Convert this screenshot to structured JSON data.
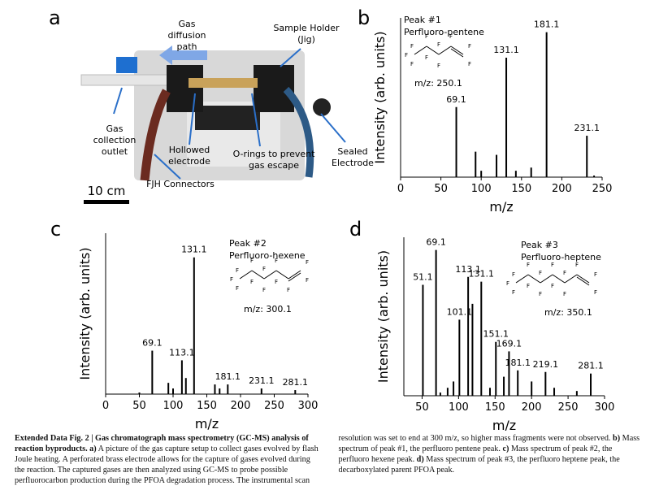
{
  "panel_a": {
    "letter": "a",
    "labels": [
      [
        "Gas",
        "diffusion",
        "path"
      ],
      [
        "Sample Holder",
        "(Jig)"
      ],
      [
        "Gas",
        "collection",
        "outlet"
      ],
      [
        "Hollowed",
        "electrode"
      ],
      [
        "O-rings to prevent",
        "gas escape"
      ],
      [
        "Sealed",
        "Electrode"
      ],
      [
        "FJH Connectors"
      ]
    ],
    "scale_bar": "10 cm"
  },
  "chart_data": [
    {
      "type": "bar",
      "panel": "b",
      "title": "Peak #1",
      "subtitle": "Perfluoro-pentene",
      "annotation": "m/z: 250.1",
      "structure_label": "F",
      "carbons": 5,
      "xlabel": "m/z",
      "ylabel": "Intensity (arb. units)",
      "xlim": [
        0,
        250
      ],
      "xticks": [
        0,
        50,
        100,
        150,
        200,
        250
      ],
      "ylim": [
        0,
        100
      ],
      "color": "#000000",
      "series": [
        {
          "labeled": true,
          "x": [
            69.1,
            131.1,
            181.1,
            231.1
          ],
          "values": [
            44,
            75,
            91,
            26
          ]
        },
        {
          "labeled": false,
          "x": [
            93,
            100,
            119,
            143,
            162,
            240
          ],
          "values": [
            16,
            4,
            14,
            4,
            6,
            1
          ]
        }
      ]
    },
    {
      "type": "bar",
      "panel": "c",
      "title": "Peak #2",
      "subtitle": "Perfluoro-hexene",
      "annotation": "m/z: 300.1",
      "structure_label": "F",
      "carbons": 6,
      "xlabel": "m/z",
      "ylabel": "Intensity (arb. units)",
      "xlim": [
        0,
        300
      ],
      "xticks": [
        0,
        50,
        100,
        150,
        200,
        250,
        300
      ],
      "ylim": [
        0,
        100
      ],
      "color": "#000000",
      "series": [
        {
          "labeled": true,
          "x": [
            69.1,
            113.1,
            131.1,
            181.1,
            231.1,
            281.1
          ],
          "values": [
            27,
            21,
            85,
            6,
            3.5,
            2.5
          ]
        },
        {
          "labeled": false,
          "x": [
            50,
            93,
            100,
            119,
            162,
            169
          ],
          "values": [
            1,
            7,
            3.5,
            10,
            6,
            3.5
          ]
        }
      ]
    },
    {
      "type": "bar",
      "panel": "d",
      "title": "Peak #3",
      "subtitle": "Perfluoro-heptene",
      "annotation": "m/z: 350.1",
      "structure_label": "F",
      "carbons": 7,
      "xlabel": "m/z",
      "ylabel": "Intensity (arb. units)",
      "xlim": [
        25,
        300
      ],
      "xticks": [
        50,
        100,
        150,
        200,
        250,
        300
      ],
      "ylim": [
        0,
        100
      ],
      "color": "#000000",
      "series": [
        {
          "labeled": true,
          "x": [
            51.1,
            69.1,
            101.1,
            113.1,
            131.1,
            151.1,
            169.1,
            181.1,
            219.1,
            281.1
          ],
          "values": [
            70,
            92,
            48,
            75,
            72,
            34,
            28,
            16,
            15,
            14
          ]
        },
        {
          "labeled": false,
          "x": [
            75,
            85,
            93,
            119,
            143,
            162,
            200,
            231,
            262
          ],
          "values": [
            2,
            5,
            9,
            58,
            5,
            12,
            9,
            5,
            3
          ]
        }
      ]
    }
  ],
  "caption": [
    {
      "text": "Extended Data Fig. 2 | Gas chromatograph mass spectrometry (GC-MS) analysis of reaction byproducts.",
      "bold": true
    },
    {
      "text": " ",
      "bold": false
    },
    {
      "text": "a)",
      "bold": true
    },
    {
      "text": " A picture of the gas capture setup to collect gases evolved by flash Joule heating. A perforated brass electrode allows for the capture of gases evolved during the reaction. The captured gases are then analyzed using GC-MS to probe possible perfluorocarbon production during the PFOA degradation process. The instrumental scan resolution was set to end at 300 m/z, so higher mass fragments were not observed. ",
      "bold": false
    },
    {
      "text": "b)",
      "bold": true
    },
    {
      "text": " Mass spectrum of peak #1, the perfluoro pentene peak. ",
      "bold": false
    },
    {
      "text": "c)",
      "bold": true
    },
    {
      "text": " Mass spectrum of peak #2, the perfluoro hexene peak. ",
      "bold": false
    },
    {
      "text": "d)",
      "bold": true
    },
    {
      "text": " Mass spectrum of peak #3, the perfluoro heptene peak, the decarboxylated parent PFOA peak.",
      "bold": false
    }
  ]
}
